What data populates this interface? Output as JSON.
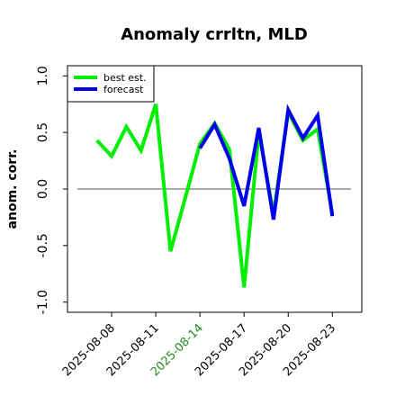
{
  "chart_data": {
    "type": "line",
    "title": "Anomaly crrltn, MLD",
    "ylabel": "anom. corr.",
    "x": [
      "2025-08-07",
      "2025-08-08",
      "2025-08-09",
      "2025-08-10",
      "2025-08-11",
      "2025-08-12",
      "2025-08-13",
      "2025-08-14",
      "2025-08-15",
      "2025-08-16",
      "2025-08-17",
      "2025-08-18",
      "2025-08-19",
      "2025-08-20",
      "2025-08-21",
      "2025-08-22",
      "2025-08-23"
    ],
    "series": [
      {
        "name": "best est.",
        "color": "#00ee00",
        "values": [
          0.43,
          0.29,
          0.55,
          0.34,
          0.75,
          -0.55,
          -0.08,
          0.4,
          0.58,
          0.35,
          -0.87,
          0.5,
          -0.22,
          0.68,
          0.43,
          0.53,
          -0.22
        ]
      },
      {
        "name": "forecast",
        "color": "#0000ee",
        "values": [
          null,
          null,
          null,
          null,
          null,
          null,
          null,
          0.36,
          0.57,
          0.27,
          -0.15,
          0.54,
          -0.27,
          0.7,
          0.45,
          0.65,
          -0.24
        ]
      }
    ],
    "xlim": [
      "2025-08-05",
      "2025-08-25"
    ],
    "xticks": [
      "2025-08-08",
      "2025-08-11",
      "2025-08-14",
      "2025-08-17",
      "2025-08-20",
      "2025-08-23"
    ],
    "highlight_xtick": 2,
    "highlight_color": "#228b22",
    "ylim": [
      -1.09,
      1.09
    ],
    "yticks": [
      {
        "value": -1,
        "label": "-1.0"
      },
      {
        "value": -0.5,
        "label": "-0.5"
      },
      {
        "value": 0,
        "label": "0.0"
      },
      {
        "value": 0.5,
        "label": "0.5"
      },
      {
        "value": 1,
        "label": "1.0"
      }
    ],
    "hline": 0,
    "legend": "upper left"
  }
}
